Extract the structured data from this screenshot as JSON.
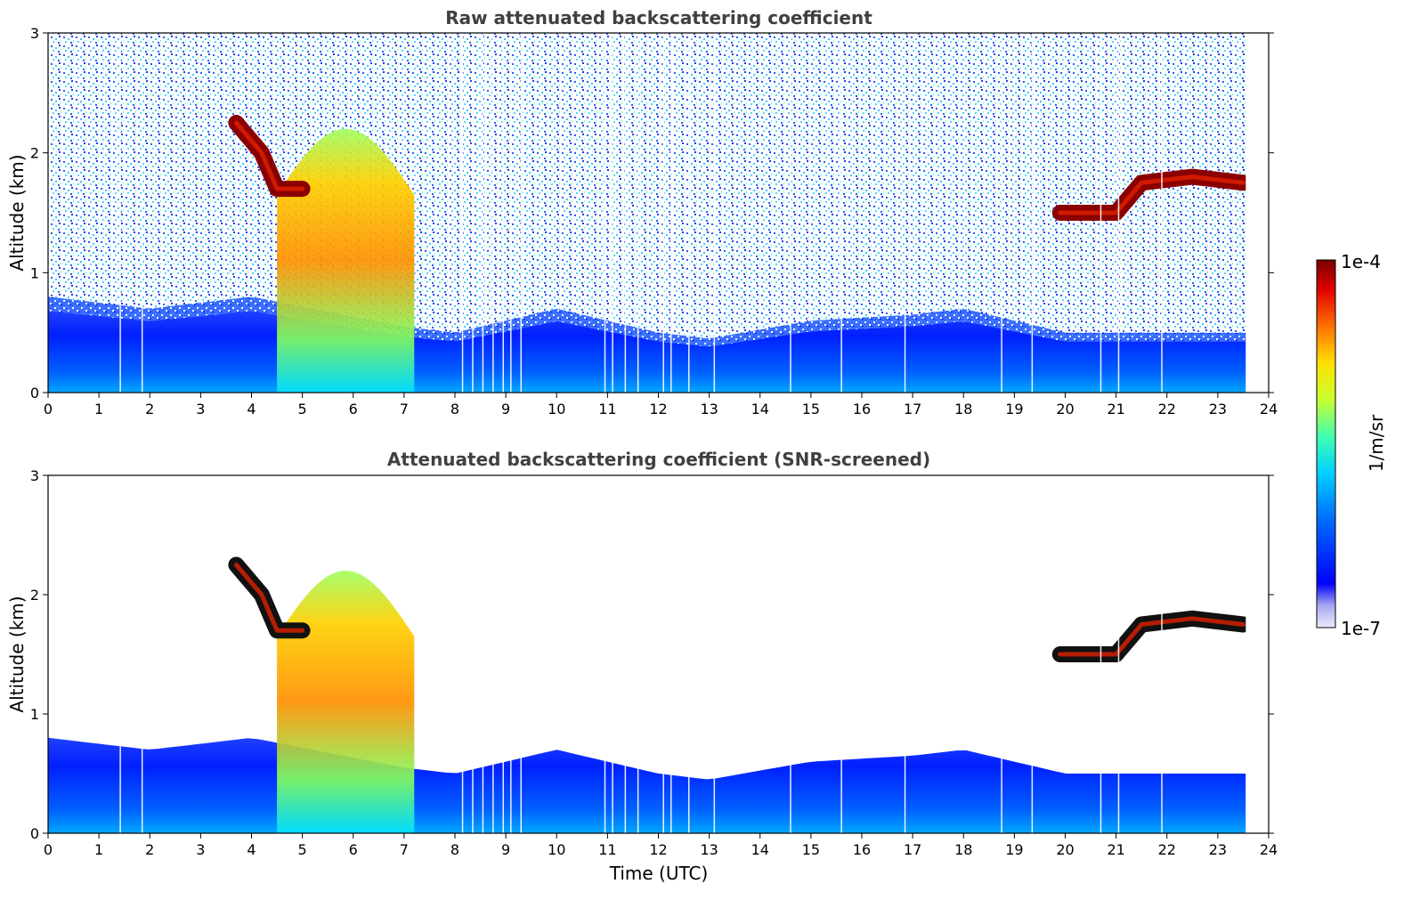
{
  "chart_data": [
    {
      "type": "heatmap",
      "title": "Raw attenuated backscattering coefficient",
      "xlabel": "",
      "ylabel": "Altitude (km)",
      "xlim": [
        0,
        24
      ],
      "ylim": [
        0,
        3
      ],
      "xticks": [
        "0",
        "1",
        "2",
        "3",
        "4",
        "5",
        "6",
        "7",
        "8",
        "9",
        "10",
        "11",
        "12",
        "13",
        "14",
        "15",
        "16",
        "17",
        "18",
        "19",
        "20",
        "21",
        "22",
        "23",
        "24"
      ],
      "yticks": [
        "0",
        "1",
        "2",
        "3"
      ],
      "data_end_time": 23.55,
      "features": [
        {
          "name": "boundary layer top",
          "points": [
            [
              0,
              0.8
            ],
            [
              2,
              0.7
            ],
            [
              4,
              0.8
            ],
            [
              7,
              0.55
            ],
            [
              8,
              0.5
            ],
            [
              10,
              0.7
            ],
            [
              12,
              0.5
            ],
            [
              13,
              0.45
            ],
            [
              15,
              0.6
            ],
            [
              17,
              0.65
            ],
            [
              18,
              0.7
            ],
            [
              19,
              0.6
            ],
            [
              20,
              0.5
            ],
            [
              22,
              0.5
            ],
            [
              23.5,
              0.5
            ]
          ]
        },
        {
          "name": "elevated cloud layer",
          "points": [
            [
              3.7,
              2.25
            ],
            [
              4.2,
              2.0
            ],
            [
              4.5,
              1.7
            ],
            [
              5.0,
              1.7
            ]
          ],
          "level": "1e-4"
        },
        {
          "name": "evening cloud layer",
          "points": [
            [
              19.9,
              1.5
            ],
            [
              21.0,
              1.5
            ],
            [
              21.5,
              1.75
            ],
            [
              22.5,
              1.8
            ],
            [
              23.5,
              1.75
            ]
          ],
          "level": "1e-4"
        },
        {
          "name": "aerosol plume",
          "time_range": [
            4.5,
            7.2
          ],
          "altitude_range": [
            0,
            2.2
          ]
        }
      ]
    },
    {
      "type": "heatmap",
      "title": "Attenuated backscattering coefficient (SNR-screened)",
      "xlabel": "Time (UTC)",
      "ylabel": "Altitude (km)",
      "xlim": [
        0,
        24
      ],
      "ylim": [
        0,
        3
      ],
      "xticks": [
        "0",
        "1",
        "2",
        "3",
        "4",
        "5",
        "6",
        "7",
        "8",
        "9",
        "10",
        "11",
        "12",
        "13",
        "14",
        "15",
        "16",
        "17",
        "18",
        "19",
        "20",
        "21",
        "22",
        "23",
        "24"
      ],
      "yticks": [
        "0",
        "1",
        "2",
        "3"
      ],
      "data_end_time": 23.55
    }
  ],
  "colorbar": {
    "label": "1/m/sr",
    "max_label": "1e-4",
    "min_label": "1e-7",
    "colors": [
      "#e8e8f8",
      "#b8b8f0",
      "#0000ff",
      "#0060ff",
      "#00c0ff",
      "#40ffb0",
      "#c0ff40",
      "#ffe000",
      "#ff8000",
      "#ff2000",
      "#800000"
    ]
  }
}
